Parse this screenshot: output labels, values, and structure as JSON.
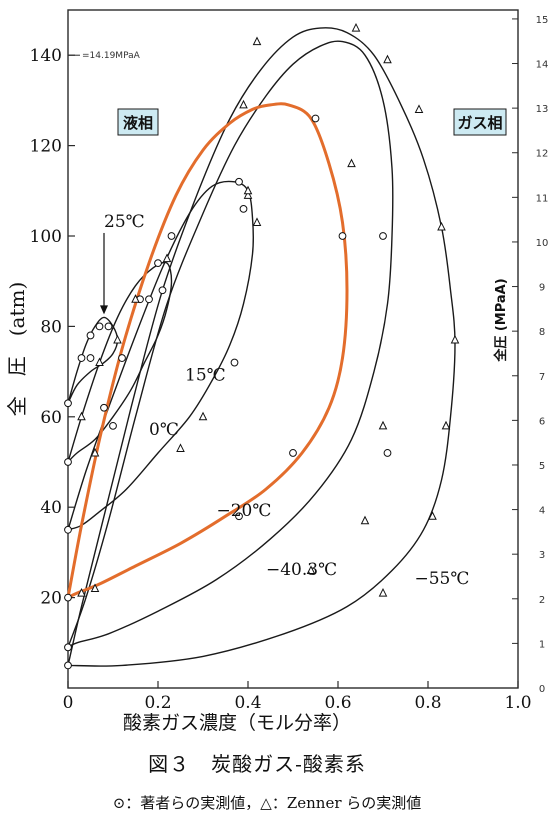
{
  "chart_data": {
    "type": "line",
    "xlabel": "酸素ガス濃度（モル分率）",
    "ylabel": "全　圧　(atm)",
    "ylabel_right": "全圧 (MPaA)",
    "xlim": [
      0,
      1.0
    ],
    "ylim": [
      0,
      150
    ],
    "ylim_right": [
      0,
      15.2
    ],
    "x_ticks": [
      0,
      0.2,
      0.4,
      0.6,
      0.8,
      1.0
    ],
    "x_tick_labels": [
      "0",
      "0.2",
      "0.4",
      "0.6",
      "0.8",
      "1.0"
    ],
    "y_ticks": [
      20,
      40,
      60,
      80,
      100,
      120,
      140
    ],
    "y_tick_labels": [
      "20",
      "40",
      "60",
      "80",
      "100",
      "120",
      "140"
    ],
    "y_right_ticks": [
      0,
      1,
      2,
      3,
      4,
      5,
      6,
      7,
      8,
      9,
      10,
      11,
      12,
      13,
      14,
      15
    ],
    "y_right_tick_labels": [
      "0",
      "1",
      "2",
      "3",
      "4",
      "5",
      "6",
      "7",
      "8",
      "9",
      "10",
      "11",
      "12",
      "13",
      "14",
      "15"
    ],
    "region_left": "液相",
    "region_right": "ガス相",
    "reference_label": "=14.19MPaA",
    "reference_value_atm": 140,
    "title": "図３　炭酸ガス-酸素系",
    "legend_text": "⊙：著者らの実測値，△：Zenner らの実測値",
    "series": [
      {
        "name": "25℃",
        "label_x": 0.08,
        "label_y": 102,
        "arrow_to": [
          0.08,
          82
        ],
        "x": [
          0,
          0.02,
          0.04,
          0.06,
          0.08,
          0.1,
          0.11,
          0.1,
          0.08,
          0.05,
          0.02,
          0
        ],
        "y": [
          63,
          70,
          76,
          80,
          82,
          80,
          77,
          74,
          72,
          70,
          67,
          63
        ]
      },
      {
        "name": "15℃",
        "label_x": 0.26,
        "label_y": 68,
        "x": [
          0,
          0.03,
          0.07,
          0.11,
          0.15,
          0.19,
          0.22,
          0.23,
          0.22,
          0.2,
          0.17,
          0.14,
          0.1,
          0.06,
          0.02,
          0
        ],
        "y": [
          50,
          60,
          72,
          82,
          89,
          93,
          94,
          90,
          84,
          78,
          72,
          66,
          60,
          55,
          52,
          50
        ]
      },
      {
        "name": "0℃",
        "label_x": 0.18,
        "label_y": 56,
        "x": [
          0,
          0.04,
          0.09,
          0.15,
          0.21,
          0.27,
          0.32,
          0.37,
          0.4,
          0.41,
          0.41,
          0.39,
          0.36,
          0.32,
          0.27,
          0.2,
          0.13,
          0.07,
          0.03,
          0
        ],
        "y": [
          35,
          48,
          62,
          78,
          93,
          105,
          111,
          112,
          110,
          104,
          96,
          85,
          76,
          68,
          60,
          52,
          44,
          39,
          36,
          35
        ]
      },
      {
        "name": "−20℃",
        "label_x": 0.33,
        "label_y": 38,
        "x": [
          0,
          0.03,
          0.07,
          0.12,
          0.18,
          0.24,
          0.3,
          0.36,
          0.41,
          0.45,
          0.49,
          0.54,
          0.58,
          0.61,
          0.62,
          0.61,
          0.58,
          0.52,
          0.44,
          0.35,
          0.25,
          0.15,
          0.07,
          0.02,
          0
        ],
        "y": [
          20,
          36,
          55,
          75,
          94,
          109,
          119,
          125,
          128,
          129,
          129,
          126,
          116,
          103,
          88,
          73,
          62,
          52,
          44,
          38,
          32,
          27,
          23,
          21,
          20
        ]
      },
      {
        "name": "−40.3℃",
        "label_x": 0.44,
        "label_y": 25,
        "x": [
          0,
          0.04,
          0.09,
          0.15,
          0.22,
          0.3,
          0.37,
          0.44,
          0.5,
          0.56,
          0.61,
          0.66,
          0.7,
          0.72,
          0.72,
          0.71,
          0.68,
          0.63,
          0.55,
          0.45,
          0.33,
          0.2,
          0.09,
          0.02,
          0
        ],
        "y": [
          9,
          20,
          37,
          60,
          85,
          105,
          120,
          131,
          138,
          142,
          143,
          140,
          130,
          115,
          100,
          85,
          70,
          55,
          43,
          33,
          24,
          17,
          12,
          10,
          9
        ]
      },
      {
        "name": "−55℃",
        "label_x": 0.77,
        "label_y": 23,
        "x": [
          0,
          0.03,
          0.08,
          0.14,
          0.21,
          0.29,
          0.36,
          0.43,
          0.5,
          0.56,
          0.62,
          0.68,
          0.74,
          0.79,
          0.83,
          0.85,
          0.86,
          0.85,
          0.83,
          0.79,
          0.72,
          0.62,
          0.48,
          0.3,
          0.12,
          0
        ],
        "y": [
          5,
          18,
          38,
          62,
          88,
          110,
          126,
          137,
          144,
          146,
          145,
          140,
          129,
          117,
          102,
          88,
          76,
          60,
          46,
          35,
          26,
          18,
          12,
          7,
          5,
          5
        ]
      }
    ],
    "highlight": {
      "name": "−20℃",
      "color": "#e36d2c",
      "x": [
        0,
        0.03,
        0.07,
        0.12,
        0.18,
        0.24,
        0.3,
        0.36,
        0.41,
        0.45,
        0.49,
        0.54,
        0.58,
        0.61,
        0.62,
        0.61,
        0.58,
        0.52,
        0.44,
        0.35,
        0.25,
        0.15,
        0.07,
        0.02,
        0
      ],
      "y": [
        20,
        36,
        55,
        75,
        94,
        109,
        119,
        125,
        128,
        129,
        129,
        126,
        116,
        103,
        88,
        73,
        62,
        52,
        44,
        38,
        32,
        27,
        23,
        21,
        20
      ]
    },
    "markers_circle": [
      [
        0,
        63
      ],
      [
        0.03,
        73
      ],
      [
        0.05,
        78
      ],
      [
        0.07,
        80
      ],
      [
        0.09,
        80
      ],
      [
        0.05,
        73
      ],
      [
        0,
        50
      ],
      [
        0.08,
        62
      ],
      [
        0.12,
        73
      ],
      [
        0.16,
        86
      ],
      [
        0.2,
        94
      ],
      [
        0.21,
        88
      ],
      [
        0,
        35
      ],
      [
        0.1,
        58
      ],
      [
        0.18,
        86
      ],
      [
        0.23,
        100
      ],
      [
        0.38,
        112
      ],
      [
        0.39,
        106
      ],
      [
        0.37,
        72
      ],
      [
        0,
        20
      ],
      [
        0.38,
        38
      ],
      [
        0.5,
        52
      ],
      [
        0.55,
        126
      ],
      [
        0.61,
        100
      ],
      [
        0.71,
        52
      ],
      [
        0,
        9
      ],
      [
        0,
        5
      ],
      [
        0.7,
        100
      ]
    ],
    "markers_triangle": [
      [
        0.03,
        60
      ],
      [
        0.07,
        72
      ],
      [
        0.11,
        77
      ],
      [
        0.15,
        86
      ],
      [
        0.22,
        95
      ],
      [
        0.3,
        60
      ],
      [
        0.42,
        103
      ],
      [
        0.39,
        129
      ],
      [
        0.4,
        109
      ],
      [
        0.25,
        53
      ],
      [
        0.06,
        52
      ],
      [
        0.03,
        21
      ],
      [
        0.54,
        26
      ],
      [
        0.63,
        116
      ],
      [
        0.7,
        58
      ],
      [
        0.42,
        143
      ],
      [
        0.4,
        110
      ],
      [
        0.64,
        146
      ],
      [
        0.71,
        139
      ],
      [
        0.78,
        128
      ],
      [
        0.83,
        102
      ],
      [
        0.86,
        77
      ],
      [
        0.84,
        58
      ],
      [
        0.81,
        38
      ],
      [
        0.7,
        21
      ],
      [
        0.06,
        22
      ],
      [
        0.66,
        37
      ]
    ],
    "colors": {
      "axis": "#2b2b2b",
      "curve": "#1a1a1a",
      "highlight": "#e36d2c",
      "region_fill": "#cdeaf2",
      "region_border": "#1a1a1a"
    }
  }
}
